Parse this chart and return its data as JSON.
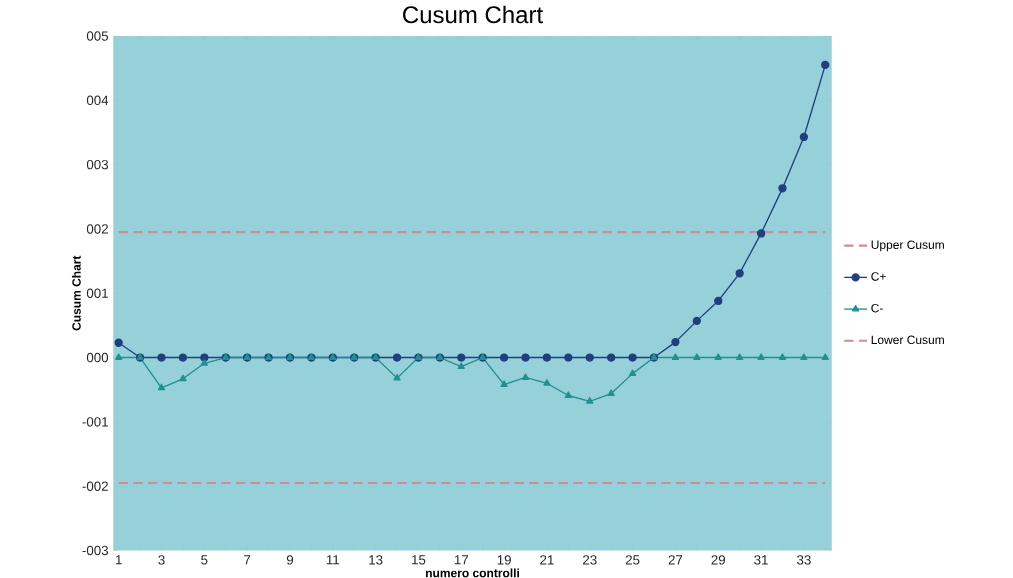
{
  "chart_data": {
    "type": "line",
    "title": "Cusum Chart",
    "xlabel": "numero controlli",
    "ylabel": "Cusum Chart",
    "categories": [
      "1",
      null,
      "3",
      null,
      "5",
      null,
      "7",
      null,
      "9",
      null,
      "11",
      null,
      "13",
      null,
      "15",
      null,
      "17",
      null,
      "19",
      null,
      "21",
      null,
      "23",
      null,
      "25",
      null,
      "27",
      null,
      "29",
      null,
      "31",
      null,
      "33",
      null
    ],
    "ylim": [
      -3,
      5
    ],
    "yticks": [
      {
        "value": -3,
        "label": "-003"
      },
      {
        "value": -2,
        "label": "-002"
      },
      {
        "value": -1,
        "label": "-001"
      },
      {
        "value": 0,
        "label": "000"
      },
      {
        "value": 1,
        "label": "001"
      },
      {
        "value": 2,
        "label": "002"
      },
      {
        "value": 3,
        "label": "003"
      },
      {
        "value": 4,
        "label": "004"
      },
      {
        "value": 5,
        "label": "005"
      }
    ],
    "legend": "right",
    "series": [
      {
        "name": "Upper Cusum",
        "color": "#d48a8e",
        "line_style": "dashed",
        "marker": "none",
        "values": [
          1.95,
          1.95,
          1.95,
          1.95,
          1.95,
          1.95,
          1.95,
          1.95,
          1.95,
          1.95,
          1.95,
          1.95,
          1.95,
          1.95,
          1.95,
          1.95,
          1.95,
          1.95,
          1.95,
          1.95,
          1.95,
          1.95,
          1.95,
          1.95,
          1.95,
          1.95,
          1.95,
          1.95,
          1.95,
          1.95,
          1.95,
          1.95,
          1.95,
          1.95
        ]
      },
      {
        "name": "C+",
        "color": "#1f3f7f",
        "line_style": "solid",
        "marker": "circle",
        "values": [
          0.23,
          0,
          0,
          0,
          0,
          0,
          0,
          0,
          0,
          0,
          0,
          0,
          0,
          0,
          0,
          0,
          0,
          0,
          0,
          0,
          0,
          0,
          0,
          0,
          0,
          0,
          0.24,
          0.57,
          0.88,
          1.31,
          1.93,
          2.63,
          3.43,
          4.55
        ]
      },
      {
        "name": "C-",
        "color": "#1f9290",
        "line_style": "solid",
        "marker": "triangle",
        "values": [
          0,
          0,
          -0.47,
          -0.33,
          -0.09,
          0,
          0,
          0,
          0,
          0,
          0,
          0,
          0,
          -0.32,
          0,
          0,
          -0.14,
          0,
          -0.42,
          -0.31,
          -0.4,
          -0.59,
          -0.68,
          -0.56,
          -0.25,
          0,
          0,
          0,
          0,
          0,
          0,
          0,
          0,
          0
        ]
      },
      {
        "name": "Lower Cusum",
        "color": "#d48a8e",
        "line_style": "dashed",
        "marker": "none",
        "values": [
          -1.95,
          -1.95,
          -1.95,
          -1.95,
          -1.95,
          -1.95,
          -1.95,
          -1.95,
          -1.95,
          -1.95,
          -1.95,
          -1.95,
          -1.95,
          -1.95,
          -1.95,
          -1.95,
          -1.95,
          -1.95,
          -1.95,
          -1.95,
          -1.95,
          -1.95,
          -1.95,
          -1.95,
          -1.95,
          -1.95,
          -1.95,
          -1.95,
          -1.95,
          -1.95,
          -1.95,
          -1.95,
          -1.95,
          -1.95
        ]
      }
    ]
  }
}
